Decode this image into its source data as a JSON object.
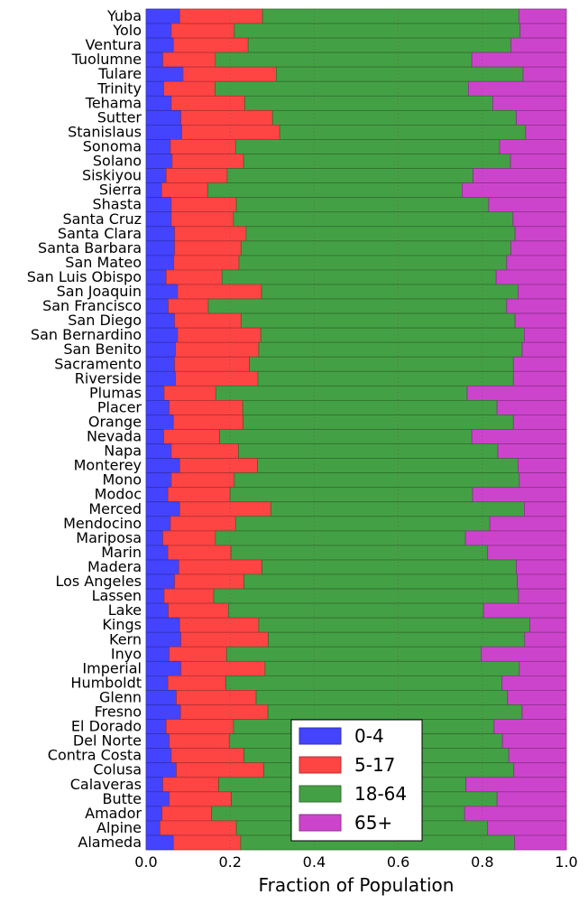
{
  "chart_data": {
    "type": "bar",
    "orientation": "horizontal",
    "stacked": true,
    "title": "",
    "xlabel": "Fraction of Population",
    "ylabel": "",
    "xlim": [
      0.0,
      1.0
    ],
    "xticks": [
      "0.0",
      "0.2",
      "0.4",
      "0.6",
      "0.8",
      "1.0"
    ],
    "grid": "vertical dotted",
    "legend_position": "lower center",
    "colors": {
      "0-4": "#4444ff",
      "5-17": "#ff4444",
      "18-64": "#44a044",
      "65+": "#cc44cc"
    },
    "categories": [
      "Yuba",
      "Yolo",
      "Ventura",
      "Tuolumne",
      "Tulare",
      "Trinity",
      "Tehama",
      "Sutter",
      "Stanislaus",
      "Sonoma",
      "Solano",
      "Siskiyou",
      "Sierra",
      "Shasta",
      "Santa Cruz",
      "Santa Clara",
      "Santa Barbara",
      "San Mateo",
      "San Luis Obispo",
      "San Joaquin",
      "San Francisco",
      "San Diego",
      "San Bernardino",
      "San Benito",
      "Sacramento",
      "Riverside",
      "Plumas",
      "Placer",
      "Orange",
      "Nevada",
      "Napa",
      "Monterey",
      "Mono",
      "Modoc",
      "Merced",
      "Mendocino",
      "Mariposa",
      "Marin",
      "Madera",
      "Los Angeles",
      "Lassen",
      "Lake",
      "Kings",
      "Kern",
      "Inyo",
      "Imperial",
      "Humboldt",
      "Glenn",
      "Fresno",
      "El Dorado",
      "Del Norte",
      "Contra Costa",
      "Colusa",
      "Calaveras",
      "Butte",
      "Amador",
      "Alpine",
      "Alameda"
    ],
    "series": [
      {
        "name": "0-4",
        "values": [
          0.08,
          0.06,
          0.065,
          0.04,
          0.088,
          0.042,
          0.06,
          0.083,
          0.085,
          0.058,
          0.062,
          0.048,
          0.037,
          0.06,
          0.06,
          0.068,
          0.068,
          0.066,
          0.048,
          0.075,
          0.053,
          0.068,
          0.075,
          0.07,
          0.068,
          0.07,
          0.043,
          0.055,
          0.065,
          0.042,
          0.06,
          0.08,
          0.06,
          0.052,
          0.08,
          0.058,
          0.04,
          0.052,
          0.078,
          0.068,
          0.043,
          0.053,
          0.08,
          0.083,
          0.055,
          0.083,
          0.052,
          0.072,
          0.082,
          0.048,
          0.055,
          0.06,
          0.072,
          0.04,
          0.055,
          0.038,
          0.033,
          0.065
        ]
      },
      {
        "name": "5-17",
        "values": [
          0.197,
          0.15,
          0.178,
          0.125,
          0.222,
          0.122,
          0.175,
          0.218,
          0.233,
          0.155,
          0.17,
          0.145,
          0.11,
          0.155,
          0.148,
          0.17,
          0.158,
          0.155,
          0.133,
          0.2,
          0.095,
          0.158,
          0.198,
          0.198,
          0.178,
          0.196,
          0.123,
          0.175,
          0.166,
          0.133,
          0.16,
          0.185,
          0.15,
          0.148,
          0.217,
          0.155,
          0.125,
          0.15,
          0.198,
          0.165,
          0.118,
          0.143,
          0.188,
          0.208,
          0.137,
          0.2,
          0.138,
          0.19,
          0.208,
          0.16,
          0.143,
          0.173,
          0.208,
          0.133,
          0.148,
          0.118,
          0.182,
          0.16
        ]
      },
      {
        "name": "18-64",
        "values": [
          0.61,
          0.68,
          0.625,
          0.61,
          0.587,
          0.603,
          0.59,
          0.58,
          0.585,
          0.628,
          0.635,
          0.585,
          0.605,
          0.6,
          0.665,
          0.64,
          0.642,
          0.637,
          0.652,
          0.61,
          0.71,
          0.652,
          0.627,
          0.627,
          0.628,
          0.608,
          0.598,
          0.605,
          0.643,
          0.6,
          0.617,
          0.62,
          0.678,
          0.577,
          0.603,
          0.605,
          0.595,
          0.61,
          0.605,
          0.65,
          0.725,
          0.607,
          0.645,
          0.61,
          0.605,
          0.605,
          0.657,
          0.598,
          0.605,
          0.62,
          0.65,
          0.63,
          0.595,
          0.588,
          0.632,
          0.602,
          0.597,
          0.652
        ]
      },
      {
        "name": "65+",
        "values": [
          0.113,
          0.11,
          0.132,
          0.225,
          0.103,
          0.233,
          0.175,
          0.119,
          0.097,
          0.159,
          0.133,
          0.222,
          0.248,
          0.185,
          0.127,
          0.122,
          0.132,
          0.142,
          0.167,
          0.115,
          0.142,
          0.122,
          0.1,
          0.105,
          0.126,
          0.126,
          0.236,
          0.165,
          0.126,
          0.225,
          0.163,
          0.115,
          0.112,
          0.223,
          0.1,
          0.182,
          0.24,
          0.188,
          0.119,
          0.117,
          0.114,
          0.197,
          0.087,
          0.099,
          0.203,
          0.112,
          0.153,
          0.14,
          0.105,
          0.172,
          0.152,
          0.137,
          0.125,
          0.239,
          0.165,
          0.242,
          0.188,
          0.123
        ]
      }
    ]
  }
}
